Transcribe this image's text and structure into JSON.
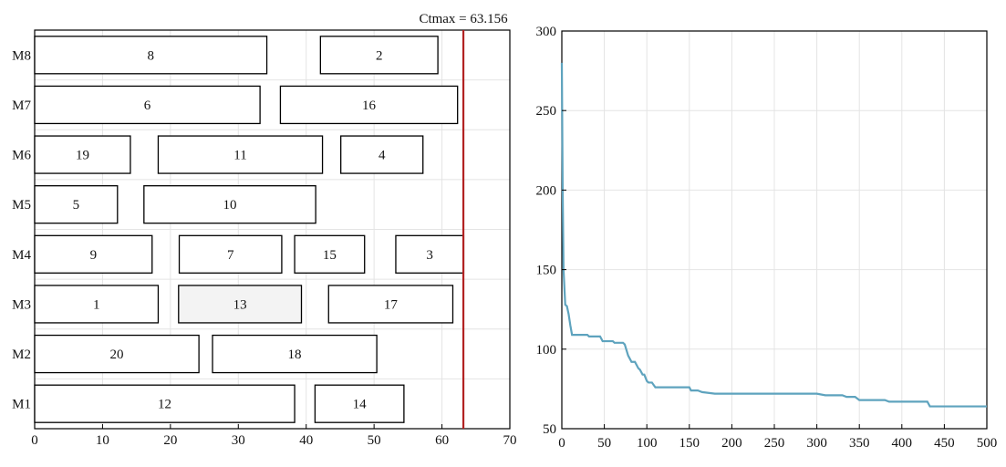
{
  "chart_data": [
    {
      "type": "gantt",
      "title": "",
      "xlabel": "",
      "ylabel": "",
      "xlim": [
        0,
        70
      ],
      "xticks": [
        0,
        10,
        20,
        30,
        40,
        50,
        60,
        70
      ],
      "machines": [
        "M1",
        "M2",
        "M3",
        "M4",
        "M5",
        "M6",
        "M7",
        "M8"
      ],
      "makespan_label": "Ctmax = 63.156",
      "makespan": 63.156,
      "makespan_color": "#b22222",
      "tasks": [
        {
          "machine": "M8",
          "job": "8",
          "start": 0,
          "end": 34.2
        },
        {
          "machine": "M8",
          "job": "2",
          "start": 42.1,
          "end": 59.4
        },
        {
          "machine": "M7",
          "job": "6",
          "start": 0,
          "end": 33.2
        },
        {
          "machine": "M7",
          "job": "16",
          "start": 36.2,
          "end": 62.3
        },
        {
          "machine": "M6",
          "job": "19",
          "start": 0,
          "end": 14.1
        },
        {
          "machine": "M6",
          "job": "11",
          "start": 18.2,
          "end": 42.4
        },
        {
          "machine": "M6",
          "job": "4",
          "start": 45.1,
          "end": 57.2
        },
        {
          "machine": "M5",
          "job": "5",
          "start": 0,
          "end": 12.2
        },
        {
          "machine": "M5",
          "job": "10",
          "start": 16.1,
          "end": 41.4
        },
        {
          "machine": "M4",
          "job": "9",
          "start": 0,
          "end": 17.3
        },
        {
          "machine": "M4",
          "job": "7",
          "start": 21.3,
          "end": 36.4
        },
        {
          "machine": "M4",
          "job": "15",
          "start": 38.3,
          "end": 48.6
        },
        {
          "machine": "M4",
          "job": "3",
          "start": 53.2,
          "end": 63.2
        },
        {
          "machine": "M3",
          "job": "1",
          "start": 0,
          "end": 18.2
        },
        {
          "machine": "M3",
          "job": "13",
          "start": 21.2,
          "end": 39.3,
          "shaded": true
        },
        {
          "machine": "M3",
          "job": "17",
          "start": 43.3,
          "end": 61.6
        },
        {
          "machine": "M2",
          "job": "20",
          "start": 0,
          "end": 24.2
        },
        {
          "machine": "M2",
          "job": "18",
          "start": 26.2,
          "end": 50.4
        },
        {
          "machine": "M1",
          "job": "12",
          "start": 0,
          "end": 38.3
        },
        {
          "machine": "M1",
          "job": "14",
          "start": 41.3,
          "end": 54.4
        }
      ]
    },
    {
      "type": "line",
      "title": "",
      "xlabel": "",
      "ylabel": "",
      "xlim": [
        0,
        500
      ],
      "ylim": [
        50,
        300
      ],
      "xticks": [
        0,
        50,
        100,
        150,
        200,
        250,
        300,
        350,
        400,
        450,
        500
      ],
      "yticks": [
        50,
        100,
        150,
        200,
        250,
        300
      ],
      "grid": true,
      "color": "#5ea3be",
      "series": [
        {
          "name": "",
          "x": [
            0,
            1,
            2,
            4,
            6,
            8,
            10,
            12,
            30,
            32,
            45,
            48,
            60,
            62,
            72,
            74,
            78,
            82,
            86,
            90,
            92,
            95,
            97,
            100,
            102,
            106,
            110,
            112,
            150,
            152,
            160,
            165,
            180,
            300,
            310,
            330,
            335,
            345,
            350,
            380,
            385,
            430,
            433,
            500
          ],
          "y": [
            280,
            200,
            150,
            128,
            127,
            122,
            115,
            109,
            109,
            108,
            108,
            105,
            105,
            104,
            104,
            103,
            96,
            92,
            92,
            88,
            87,
            84,
            84,
            80,
            79,
            79,
            76,
            76,
            76,
            74,
            74,
            73,
            72,
            72,
            71,
            71,
            70,
            70,
            68,
            68,
            67,
            67,
            64,
            64
          ]
        }
      ]
    }
  ]
}
